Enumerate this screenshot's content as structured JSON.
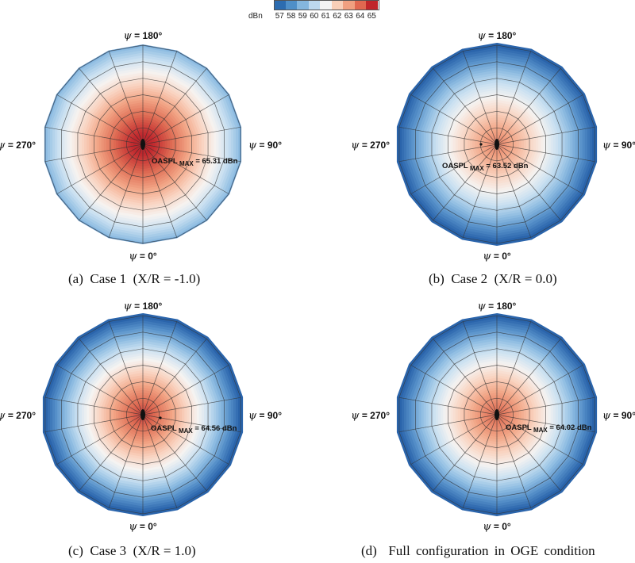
{
  "colorbar": {
    "label": "dBn",
    "ticks": [
      "57",
      "58",
      "59",
      "60",
      "61",
      "62",
      "63",
      "64",
      "65"
    ],
    "colors": [
      "#2c6cb0",
      "#4f8fc8",
      "#84b6de",
      "#bcd8ee",
      "#f4f4f4",
      "#f8cfb8",
      "#f0a080",
      "#e06850",
      "#c0262a"
    ]
  },
  "chart_data": [
    {
      "type": "heatmap",
      "subtype": "polar contour",
      "panel": "a",
      "caption": "(a)  Case 1  (X/R = -1.0)",
      "angle_labels": {
        "top": "180°",
        "right": "90°",
        "bottom": "0°",
        "left": "270°"
      },
      "annotation": {
        "prefix": "OASPL",
        "subscript": "MAX",
        "text": " = 65.31 dBn"
      },
      "max_value": 65.31,
      "peak_location": "center",
      "edge_value": 59,
      "colorbar_range": [
        57,
        65
      ]
    },
    {
      "type": "heatmap",
      "subtype": "polar contour",
      "panel": "b",
      "caption": "(b)  Case 2  (X/R = 0.0)",
      "angle_labels": {
        "top": "180°",
        "right": "90°",
        "bottom": "0°",
        "left": "270°"
      },
      "annotation": {
        "prefix": "OASPL",
        "subscript": "MAX",
        "text": " = 63.52 dBn"
      },
      "max_value": 63.52,
      "peak_location": "center",
      "edge_value": 57,
      "colorbar_range": [
        57,
        65
      ]
    },
    {
      "type": "heatmap",
      "subtype": "polar contour",
      "panel": "c",
      "caption": "(c)  Case 3  (X/R = 1.0)",
      "angle_labels": {
        "top": "180°",
        "right": "90°",
        "bottom": "0°",
        "left": "270°"
      },
      "annotation": {
        "prefix": "OASPL",
        "subscript": "MAX",
        "text": " = 64.56 dBn"
      },
      "max_value": 64.56,
      "peak_location": "center",
      "edge_value": 57,
      "colorbar_range": [
        57,
        65
      ]
    },
    {
      "type": "heatmap",
      "subtype": "polar contour",
      "panel": "d",
      "caption": "(d)  Full configuration in OGE condition",
      "angle_labels": {
        "top": "180°",
        "right": "90°",
        "bottom": "0°",
        "left": "270°"
      },
      "annotation": {
        "prefix": "OASPL",
        "subscript": "MAX",
        "text": " = 64.02 dBn"
      },
      "max_value": 64.02,
      "peak_location": "center",
      "edge_value": 57,
      "colorbar_range": [
        57,
        65
      ]
    }
  ],
  "psi_symbol": "ψ"
}
